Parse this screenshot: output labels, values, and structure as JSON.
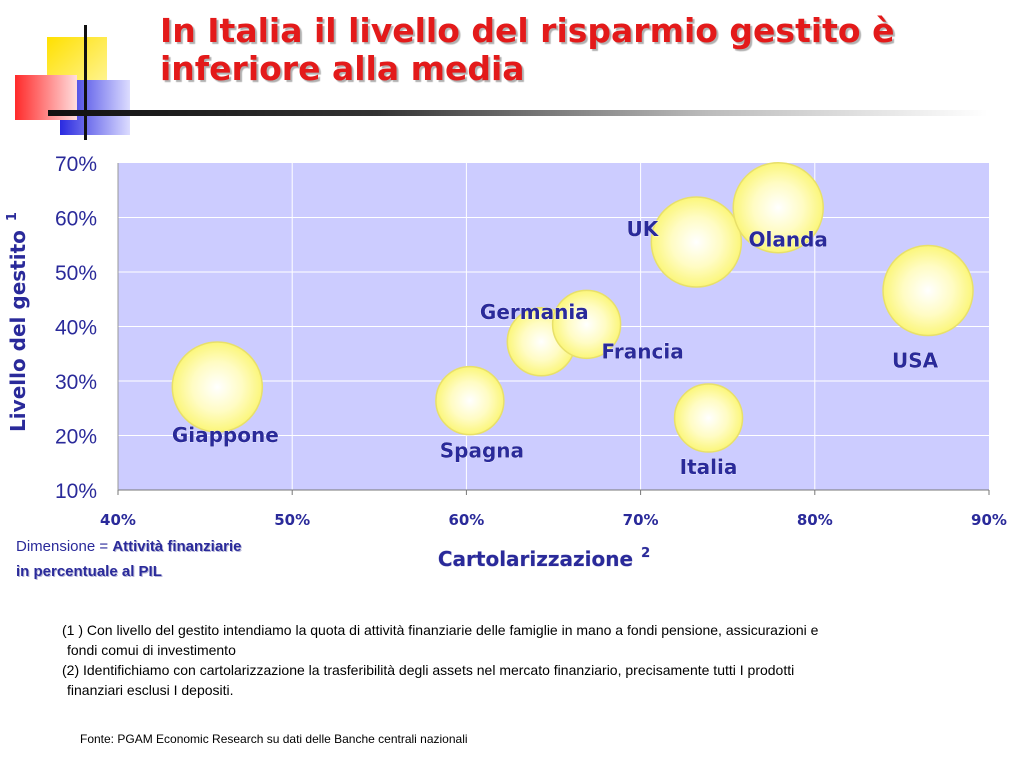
{
  "slide": {
    "title_line1": "In Italia il livello del risparmio gestito è",
    "title_line2": "inferiore alla media",
    "dimension_prefix": "Dimensione = ",
    "dimension_value": "Attività finanziarie",
    "dimension_line2": "in percentuale al PIL",
    "footnote1_a": "(1 ) Con livello del gestito intendiamo la quota di attività finanziarie delle famiglie in mano a fondi pensione, assicurazioni e",
    "footnote1_b": "fondi comui di investimento",
    "footnote2_a": "(2) Identifichiamo con cartolarizzazione la trasferibilità degli assets nel mercato finanziario, precisamente tutti I prodotti",
    "footnote2_b": "finanziari esclusi I depositi.",
    "source": "Fonte: PGAM Economic Research su dati delle Banche centrali nazionali"
  },
  "colors": {
    "title": "#e31a1a",
    "plot_bg": "#ccccff",
    "bubble_fill": "#fdfba8",
    "bubble_stroke": "#e8e06a",
    "label": "#2a2a9a"
  },
  "chart_data": {
    "type": "scatter",
    "title": "",
    "xlabel": "Cartolarizzazione",
    "xlabel_sup": "2",
    "ylabel": "Livello del gestito",
    "ylabel_sup": "1",
    "xlim": [
      40,
      90
    ],
    "ylim": [
      10,
      70
    ],
    "xticks": [
      "40%",
      "50%",
      "60%",
      "70%",
      "80%",
      "90%"
    ],
    "yticks": [
      "10%",
      "20%",
      "30%",
      "40%",
      "50%",
      "60%",
      "70%"
    ],
    "grid": true,
    "points": [
      {
        "label": "Giappone",
        "x": 45.7,
        "y": 28.9,
        "size": "large"
      },
      {
        "label": "Spagna",
        "x": 60.2,
        "y": 26.4,
        "size": "small"
      },
      {
        "label": "Germania",
        "x": 64.3,
        "y": 37.2,
        "size": "small"
      },
      {
        "label": "Francia",
        "x": 66.9,
        "y": 40.4,
        "size": "small"
      },
      {
        "label": "UK",
        "x": 73.2,
        "y": 55.5,
        "size": "large"
      },
      {
        "label": "Olanda",
        "x": 77.9,
        "y": 61.8,
        "size": "large"
      },
      {
        "label": "Italia",
        "x": 73.9,
        "y": 23.2,
        "size": "small"
      },
      {
        "label": "USA",
        "x": 86.5,
        "y": 46.6,
        "size": "large"
      }
    ]
  }
}
